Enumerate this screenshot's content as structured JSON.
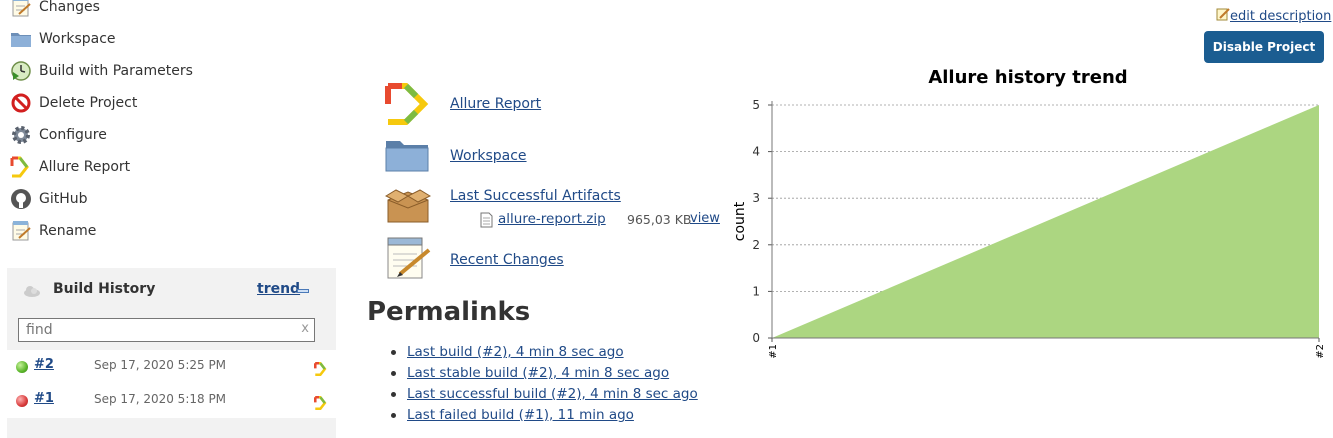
{
  "sidebar": {
    "tasks": [
      {
        "label": "Changes",
        "icon": "notepad-icon"
      },
      {
        "label": "Workspace",
        "icon": "folder-icon"
      },
      {
        "label": "Build with Parameters",
        "icon": "clock-play-icon"
      },
      {
        "label": "Delete Project",
        "icon": "no-entry-icon"
      },
      {
        "label": "Configure",
        "icon": "gear-icon"
      },
      {
        "label": "Allure Report",
        "icon": "allure-icon"
      },
      {
        "label": "GitHub",
        "icon": "github-icon"
      },
      {
        "label": "Rename",
        "icon": "notepad-pencil-icon"
      }
    ]
  },
  "build_history": {
    "title": "Build History",
    "trend_label": "trend",
    "search_placeholder": "find",
    "search_value": "",
    "clear_label": "x",
    "builds": [
      {
        "number": "#2",
        "date": "Sep 17, 2020 5:25 PM",
        "status": "success",
        "color": "#5ab52a"
      },
      {
        "number": "#1",
        "date": "Sep 17, 2020 5:18 PM",
        "status": "failed",
        "color": "#d83b3b"
      }
    ]
  },
  "main": {
    "items": [
      {
        "label": "Allure Report",
        "icon": "allure-icon"
      },
      {
        "label": "Workspace",
        "icon": "folder-icon"
      },
      {
        "label": "Last Successful Artifacts",
        "icon": "package-icon"
      },
      {
        "label": "Recent Changes",
        "icon": "notepad-pencil-icon"
      }
    ],
    "artifact": {
      "name": "allure-report.zip",
      "size": "965,03 KB",
      "view_label": "view"
    },
    "permalinks_title": "Permalinks",
    "permalinks": [
      "Last build (#2), 4 min 8 sec ago",
      "Last stable build (#2), 4 min 8 sec ago",
      "Last successful build (#2), 4 min 8 sec ago",
      "Last failed build (#1), 11 min ago"
    ]
  },
  "header": {
    "edit_description": "edit description",
    "disable_button": "Disable Project"
  },
  "colors": {
    "link": "#204a87",
    "button": "#1b5d91",
    "chart_fill": "#acd681",
    "success": "#5ab52a",
    "failure": "#d83b3b"
  },
  "chart_data": {
    "type": "area",
    "title": "Allure history trend",
    "ylabel": "count",
    "xlabel": "",
    "categories": [
      "#1",
      "#2"
    ],
    "series": [
      {
        "values": [
          0,
          5
        ]
      }
    ],
    "ylim": [
      0,
      5
    ],
    "yticks": [
      0,
      1,
      2,
      3,
      4,
      5
    ],
    "grid": true,
    "legend": "none"
  }
}
